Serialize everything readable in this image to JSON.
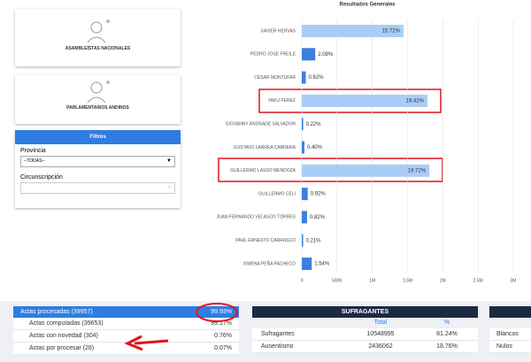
{
  "sidebar": {
    "cards": [
      "ASAMBLEÍSTAS NACIONALES",
      "PARLAMENTARIOS ANDINOS"
    ],
    "filters": {
      "title": "Filtros",
      "province_label": "Provincia",
      "province_value": "--TODAS--",
      "district_label": "Circunscripción"
    }
  },
  "chart_data": {
    "type": "hbar",
    "title": "Resultados Generales",
    "categories": [
      "XAVIER HERVAS",
      "PEDRO JOSE FREILE",
      "CESAR MONTUFAR",
      "YAKU PEREZ",
      "GIOVANNY ANDRADE SALVADOR",
      "GUSTAVO LARREA CABRERA",
      "GUILLERMO LASSO MENDOZA",
      "GUILLERMO CELI",
      "JUAN FERNANDO VELASCO TORRES",
      "PAUL ERNESTO CARRASCO",
      "XIMENA PEÑA PACHECO"
    ],
    "values": [
      1443000,
      191000,
      57000,
      1783000,
      20000,
      37000,
      1810000,
      84000,
      75000,
      19000,
      141000
    ],
    "share_labels": [
      "15.72%",
      "2.08%",
      "0.62%",
      "19.42%",
      "0.22%",
      "0.40%",
      "19.72%",
      "0.92%",
      "0.82%",
      "0.21%",
      "1.54%"
    ],
    "colors": [
      "#a9cdf6",
      "#3d7fe0",
      "#3d7fe0",
      "#a9cdf6",
      "#3d7fe0",
      "#3d7fe0",
      "#a9cdf6",
      "#3d7fe0",
      "#3d7fe0",
      "#3d7fe0",
      "#3d7fe0"
    ],
    "xlim": [
      0,
      3000000
    ],
    "xticks": [
      0,
      {
        "value": 500000,
        "label": "500K"
      },
      {
        "value": 1000000,
        "label": "1M"
      },
      {
        "value": 1500000,
        "label": "1.5M"
      },
      {
        "value": 2000000,
        "label": "2M"
      },
      {
        "value": 2500000,
        "label": "2.5M"
      },
      {
        "value": 3000000,
        "label": "3M"
      }
    ],
    "grid": true
  },
  "actas": {
    "header": [
      "Actas procesadas (39957)",
      "99.93%"
    ],
    "rows": [
      [
        "Actas computadas (39653)",
        "99.17%"
      ],
      [
        "Actas con novedad (304)",
        "0.76%"
      ],
      [
        "Actas por procesar (28)",
        "0.07%"
      ]
    ]
  },
  "sufragantes": {
    "title": "SUFRAGANTES",
    "columns": [
      "Total",
      "%"
    ],
    "rows": [
      [
        "Sufragantes",
        "10548995",
        "81.24%"
      ],
      [
        "Ausentismo",
        "2436062",
        "18.76%"
      ]
    ]
  },
  "votos": {
    "rows": [
      "Blancos",
      "Nulos"
    ]
  }
}
